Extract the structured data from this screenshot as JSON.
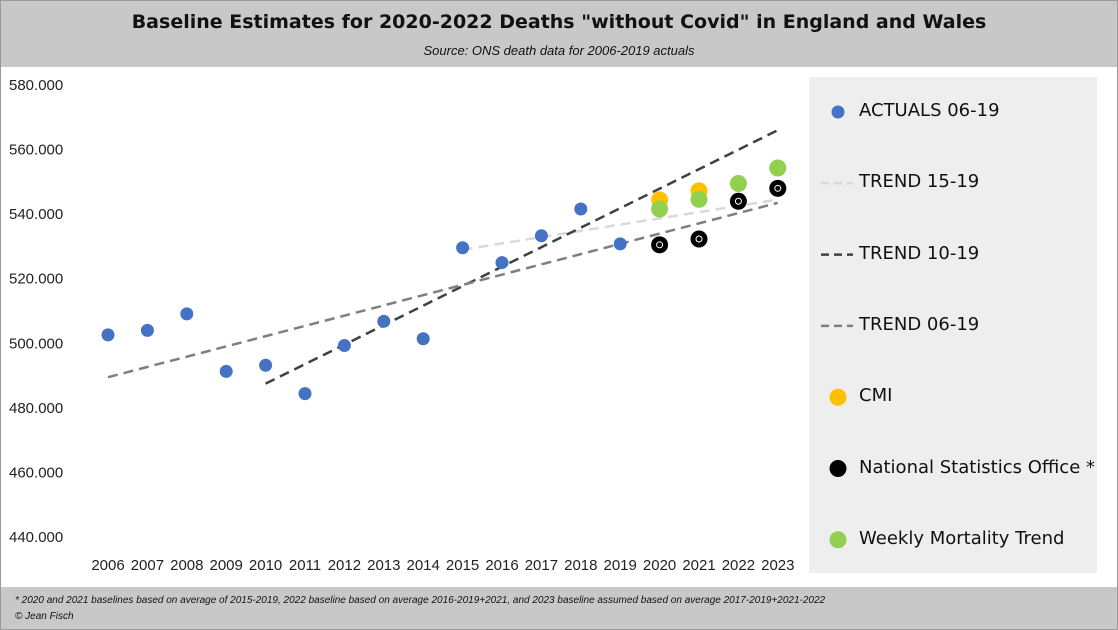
{
  "header": {
    "title": "Baseline Estimates for 2020-2022 Deaths \"without Covid\" in England and Wales",
    "subtitle": "Source: ONS death data for 2006-2019 actuals"
  },
  "footer": {
    "footnote": "* 2020 and 2021 baselines based on average of 2015-2019, 2022 baseline based on average 2016-2019+2021, and 2023 baseline assumed based on average 2017-2019+2021-2022",
    "copyright": "© Jean Fisch"
  },
  "chart_data": {
    "type": "scatter",
    "title": "Baseline Estimates for 2020-2022 Deaths \"without Covid\" in England and Wales",
    "xlabel": "",
    "ylabel": "",
    "categories": [
      "2006",
      "2007",
      "2008",
      "2009",
      "2010",
      "2011",
      "2012",
      "2013",
      "2014",
      "2015",
      "2016",
      "2017",
      "2018",
      "2019",
      "2020",
      "2021",
      "2022",
      "2023"
    ],
    "ylim": [
      440000,
      580000
    ],
    "yticks": [
      "440.000",
      "460.000",
      "480.000",
      "500.000",
      "520.000",
      "540.000",
      "560.000",
      "580.000"
    ],
    "grid": false,
    "legend_position": "right",
    "series": [
      {
        "name": "ACTUALS 06-19",
        "kind": "points",
        "color": "#4472c4",
        "points": [
          [
            2006,
            502600
          ],
          [
            2007,
            504000
          ],
          [
            2008,
            509100
          ],
          [
            2009,
            491300
          ],
          [
            2010,
            493200
          ],
          [
            2011,
            484400
          ],
          [
            2012,
            499300
          ],
          [
            2013,
            506800
          ],
          [
            2014,
            501400
          ],
          [
            2015,
            529600
          ],
          [
            2016,
            525000
          ],
          [
            2017,
            533300
          ],
          [
            2018,
            541600
          ],
          [
            2019,
            530800
          ]
        ]
      },
      {
        "name": "TREND 15-19",
        "kind": "trend",
        "color": "#d9d9d9",
        "points": [
          [
            2015,
            529000
          ],
          [
            2023,
            544500
          ]
        ]
      },
      {
        "name": "TREND 10-19",
        "kind": "trend",
        "color": "#404040",
        "points": [
          [
            2010,
            487500
          ],
          [
            2023,
            566000
          ]
        ]
      },
      {
        "name": "TREND 06-19",
        "kind": "trend",
        "color": "#7f7f7f",
        "points": [
          [
            2006,
            489500
          ],
          [
            2023,
            543500
          ]
        ]
      },
      {
        "name": "CMI",
        "kind": "points",
        "color": "#ffc000",
        "points": [
          [
            2020,
            544400
          ],
          [
            2021,
            547200
          ]
        ]
      },
      {
        "name": "National Statistics Office *",
        "kind": "points-ring",
        "color": "#000000",
        "points": [
          [
            2020,
            530500
          ],
          [
            2021,
            532300
          ],
          [
            2022,
            544000
          ],
          [
            2023,
            548000
          ]
        ]
      },
      {
        "name": "Weekly Mortality Trend",
        "kind": "points",
        "color": "#92d050",
        "points": [
          [
            2020,
            541600
          ],
          [
            2021,
            544600
          ],
          [
            2022,
            549500
          ],
          [
            2023,
            554300
          ]
        ]
      }
    ]
  }
}
